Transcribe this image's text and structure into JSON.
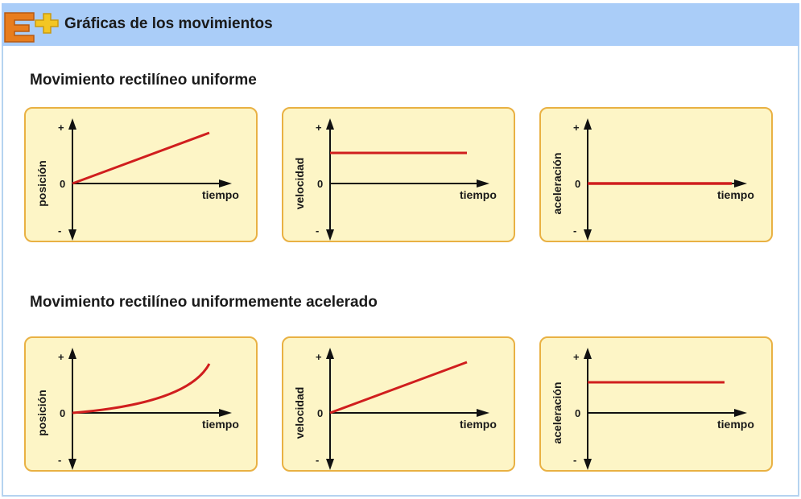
{
  "app_title": "Gráficas de los movimientos",
  "logo": {
    "icon": "e-plus-logo-icon",
    "colors": {
      "e": "#e87d1e",
      "plus": "#f3c623"
    }
  },
  "colors": {
    "curve": "#d01e1e",
    "panel_fill": "#fdf5c6",
    "panel_border": "#e9b143",
    "titlebar": "#aacdf8"
  },
  "axis_labels": {
    "plus": "+",
    "zero": "0",
    "minus": "-",
    "time": "tiempo"
  },
  "sections": [
    {
      "title": "Movimiento rectilíneo uniforme",
      "graphs": [
        {
          "ylabel": "posición",
          "shape": "rising-line"
        },
        {
          "ylabel": "velocidad",
          "shape": "constant-positive"
        },
        {
          "ylabel": "aceleración",
          "shape": "zero-line"
        }
      ]
    },
    {
      "title": "Movimiento rectilíneo uniformemente acelerado",
      "graphs": [
        {
          "ylabel": "posición",
          "shape": "parabola"
        },
        {
          "ylabel": "velocidad",
          "shape": "rising-line"
        },
        {
          "ylabel": "aceleración",
          "shape": "constant-positive"
        }
      ]
    }
  ]
}
